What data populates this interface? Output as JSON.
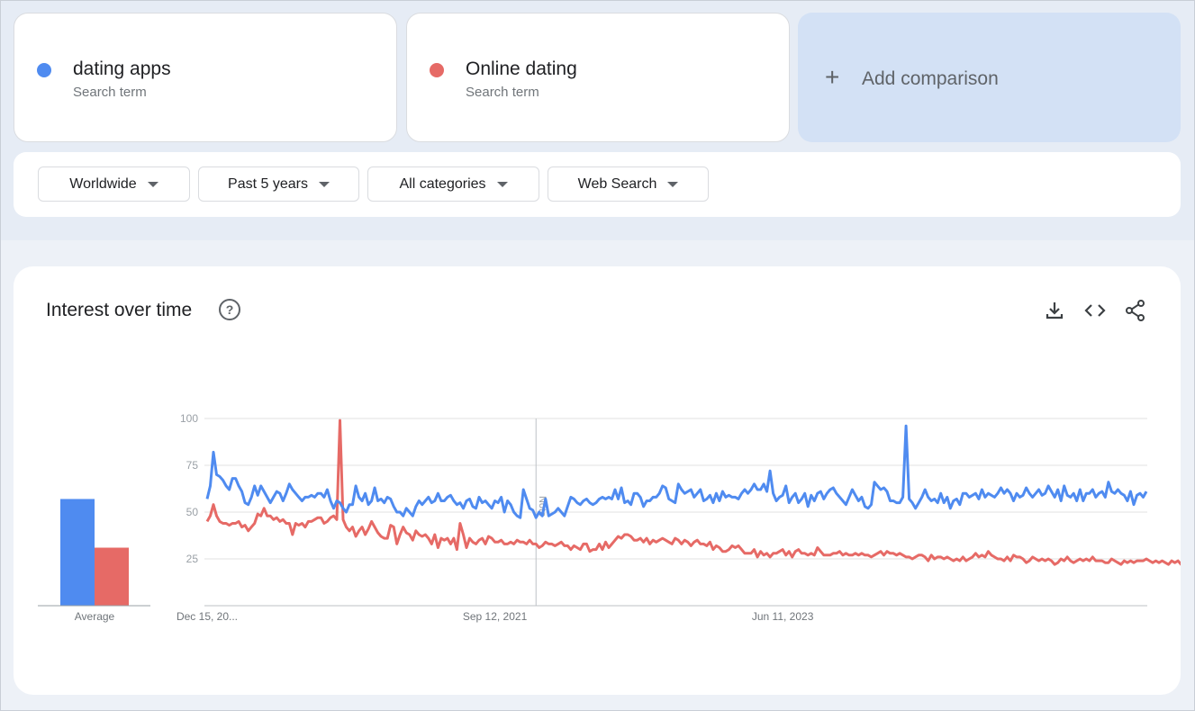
{
  "terms": [
    {
      "name": "dating apps",
      "sub": "Search term",
      "color": "#4f8bf0"
    },
    {
      "name": "Online dating",
      "sub": "Search term",
      "color": "#e66a66"
    }
  ],
  "add_comparison": {
    "label": "Add comparison"
  },
  "filters": {
    "region": "Worldwide",
    "time": "Past 5 years",
    "category": "All categories",
    "property": "Web Search"
  },
  "chart_card": {
    "title": "Interest over time",
    "note_label": "Note",
    "average_label": "Average",
    "y_ticks": [
      25,
      50,
      75,
      100
    ],
    "x_tick_labels": [
      "Dec 15, 20...",
      "Sep 12, 2021",
      "Jun 11, 2023"
    ]
  },
  "chart_data": {
    "type": "line",
    "ylim": [
      0,
      100
    ],
    "x_ticks": [
      {
        "label": "Dec 15, 20...",
        "index": 0
      },
      {
        "label": "Sep 12, 2021",
        "index": 91
      },
      {
        "label": "Jun 11, 2023",
        "index": 182
      }
    ],
    "note_index": 104,
    "averages": {
      "dating apps": 57,
      "Online dating": 31
    },
    "series": [
      {
        "name": "dating apps",
        "color": "#4f8bf0",
        "values": [
          57,
          64,
          82,
          70,
          69,
          67,
          64,
          62,
          68,
          68,
          64,
          61,
          55,
          54,
          58,
          64,
          59,
          64,
          61,
          58,
          55,
          58,
          61,
          60,
          56,
          60,
          65,
          62,
          60,
          58,
          56,
          58,
          58,
          59,
          58,
          60,
          60,
          58,
          62,
          56,
          52,
          56,
          55,
          52,
          50,
          54,
          54,
          64,
          58,
          56,
          60,
          54,
          56,
          63,
          56,
          57,
          55,
          58,
          57,
          53,
          50,
          50,
          48,
          52,
          50,
          48,
          53,
          56,
          54,
          56,
          58,
          55,
          56,
          60,
          56,
          56,
          58,
          59,
          56,
          54,
          55,
          52,
          56,
          57,
          53,
          52,
          58,
          55,
          56,
          54,
          52,
          56,
          55,
          58,
          50,
          56,
          54,
          50,
          48,
          47,
          62,
          57,
          52,
          51,
          47,
          50,
          48,
          57,
          48,
          49,
          50,
          52,
          50,
          48,
          53,
          58,
          57,
          55,
          54,
          56,
          57,
          55,
          54,
          55,
          57,
          58,
          57,
          58,
          57,
          62,
          57,
          63,
          55,
          56,
          54,
          60,
          60,
          58,
          53,
          56,
          56,
          58,
          58,
          60,
          64,
          63,
          57,
          56,
          55,
          65,
          62,
          60,
          61,
          62,
          58,
          60,
          62,
          56,
          57,
          59,
          55,
          60,
          56,
          61,
          58,
          59,
          58,
          58,
          57,
          60,
          62,
          60,
          62,
          65,
          62,
          62,
          65,
          61,
          72,
          60,
          56,
          58,
          59,
          64,
          55,
          58,
          60,
          55,
          57,
          60,
          53,
          59,
          56,
          60,
          61,
          57,
          60,
          62,
          63,
          60,
          58,
          56,
          54,
          58,
          62,
          59,
          56,
          58,
          53,
          52,
          54,
          66,
          64,
          62,
          63,
          61,
          56,
          56,
          55,
          55,
          58,
          96,
          57,
          55,
          52,
          55,
          58,
          62,
          58,
          56,
          57,
          55,
          60,
          55,
          58,
          52,
          56,
          57,
          54,
          60,
          60,
          58,
          59,
          60,
          57,
          62,
          58,
          60,
          59,
          58,
          60,
          63,
          60,
          62,
          60,
          56,
          60,
          58,
          59,
          63,
          60,
          58,
          60,
          62,
          59,
          60,
          64,
          61,
          58,
          62,
          56,
          64,
          59,
          58,
          60,
          56,
          62,
          56,
          60,
          60,
          62,
          58,
          60,
          61,
          58,
          66,
          61,
          60,
          62,
          60,
          59,
          56,
          61,
          54,
          59,
          60,
          58,
          61
        ]
      },
      {
        "name": "Online dating",
        "color": "#e66a66",
        "values": [
          45,
          48,
          54,
          48,
          45,
          44,
          44,
          43,
          44,
          44,
          45,
          42,
          43,
          40,
          42,
          44,
          49,
          48,
          52,
          48,
          48,
          46,
          47,
          45,
          46,
          44,
          44,
          38,
          44,
          43,
          44,
          42,
          45,
          45,
          46,
          47,
          47,
          44,
          45,
          47,
          48,
          46,
          99,
          46,
          42,
          40,
          42,
          37,
          40,
          42,
          38,
          41,
          45,
          42,
          39,
          37,
          36,
          36,
          43,
          42,
          33,
          38,
          42,
          39,
          38,
          35,
          40,
          38,
          37,
          38,
          36,
          33,
          38,
          31,
          36,
          35,
          36,
          33,
          36,
          30,
          44,
          38,
          31,
          36,
          34,
          33,
          35,
          36,
          33,
          37,
          36,
          34,
          34,
          35,
          33,
          33,
          34,
          33,
          35,
          34,
          34,
          33,
          35,
          33,
          33,
          31,
          32,
          34,
          33,
          33,
          32,
          33,
          34,
          32,
          32,
          30,
          32,
          31,
          30,
          33,
          33,
          29,
          30,
          30,
          33,
          30,
          34,
          31,
          33,
          35,
          37,
          36,
          38,
          38,
          37,
          35,
          35,
          36,
          34,
          36,
          33,
          35,
          34,
          35,
          36,
          35,
          34,
          33,
          36,
          35,
          33,
          35,
          34,
          32,
          34,
          35,
          33,
          33,
          32,
          34,
          30,
          32,
          31,
          29,
          29,
          30,
          32,
          31,
          32,
          30,
          28,
          28,
          28,
          30,
          26,
          29,
          27,
          28,
          26,
          28,
          28,
          29,
          30,
          27,
          29,
          26,
          29,
          30,
          28,
          28,
          27,
          28,
          27,
          31,
          29,
          27,
          27,
          27,
          28,
          28,
          29,
          27,
          28,
          27,
          27,
          28,
          27,
          28,
          27,
          27,
          26,
          27,
          28,
          29,
          27,
          29,
          28,
          28,
          27,
          28,
          27,
          26,
          26,
          25,
          26,
          27,
          27,
          26,
          24,
          27,
          25,
          26,
          26,
          25,
          26,
          25,
          24,
          25,
          24,
          26,
          24,
          25,
          26,
          28,
          26,
          27,
          26,
          29,
          27,
          26,
          25,
          25,
          24,
          26,
          24,
          27,
          26,
          26,
          25,
          23,
          24,
          26,
          25,
          24,
          25,
          24,
          25,
          24,
          22,
          23,
          25,
          24,
          26,
          24,
          23,
          24,
          25,
          24,
          25,
          24,
          26,
          24,
          24,
          24,
          23,
          23,
          25,
          24,
          23,
          22,
          24,
          23,
          24,
          23,
          24,
          24,
          24,
          25,
          24,
          23,
          24,
          23,
          24,
          23,
          22,
          24,
          23,
          24,
          22,
          23
        ]
      }
    ]
  }
}
